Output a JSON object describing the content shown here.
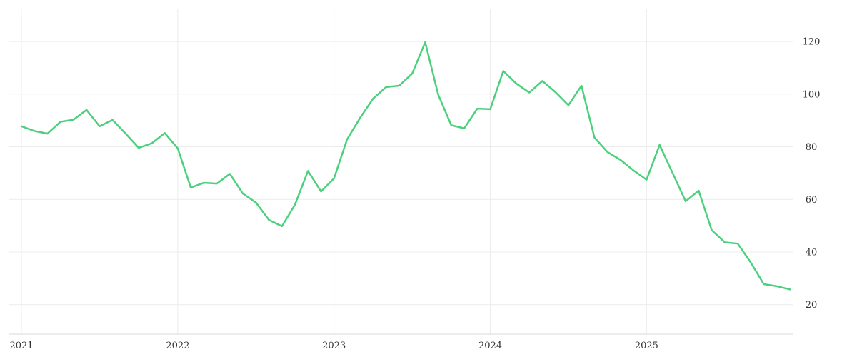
{
  "chart_data": {
    "type": "line",
    "title": "",
    "xlabel": "",
    "ylabel": "",
    "x_ticks": [
      "2021",
      "2022",
      "2023",
      "2024",
      "2025"
    ],
    "y_ticks": [
      20,
      40,
      60,
      80,
      100,
      120
    ],
    "ylim": [
      8.8,
      132.5
    ],
    "xlim": [
      "2021-01-01",
      "2025-12-01"
    ],
    "grid": true,
    "y_axis_side": "right",
    "colors": {
      "line": "#4cd07d",
      "grid": "#ececec",
      "text": "#333333"
    },
    "series": [
      {
        "values": [
          {
            "x": "2021-01",
            "y": 87.8
          },
          {
            "x": "2021-02",
            "y": 86.0
          },
          {
            "x": "2021-03",
            "y": 85.0
          },
          {
            "x": "2021-04",
            "y": 89.5
          },
          {
            "x": "2021-05",
            "y": 90.3
          },
          {
            "x": "2021-06",
            "y": 94.0
          },
          {
            "x": "2021-07",
            "y": 87.8
          },
          {
            "x": "2021-08",
            "y": 90.2
          },
          {
            "x": "2021-09",
            "y": 85.0
          },
          {
            "x": "2021-10",
            "y": 79.6
          },
          {
            "x": "2021-11",
            "y": 81.3
          },
          {
            "x": "2021-12",
            "y": 85.2
          },
          {
            "x": "2022-01",
            "y": 79.4
          },
          {
            "x": "2022-02",
            "y": 64.5
          },
          {
            "x": "2022-03",
            "y": 66.3
          },
          {
            "x": "2022-04",
            "y": 66.0
          },
          {
            "x": "2022-05",
            "y": 69.7
          },
          {
            "x": "2022-06",
            "y": 62.2
          },
          {
            "x": "2022-07",
            "y": 58.8
          },
          {
            "x": "2022-08",
            "y": 52.2
          },
          {
            "x": "2022-09",
            "y": 49.8
          },
          {
            "x": "2022-10",
            "y": 58.0
          },
          {
            "x": "2022-11",
            "y": 70.8
          },
          {
            "x": "2022-12",
            "y": 63.0
          },
          {
            "x": "2023-01",
            "y": 68.0
          },
          {
            "x": "2023-02",
            "y": 82.8
          },
          {
            "x": "2023-03",
            "y": 91.0
          },
          {
            "x": "2023-04",
            "y": 98.3
          },
          {
            "x": "2023-05",
            "y": 102.7
          },
          {
            "x": "2023-06",
            "y": 103.2
          },
          {
            "x": "2023-07",
            "y": 107.8
          },
          {
            "x": "2023-08",
            "y": 119.7
          },
          {
            "x": "2023-09",
            "y": 99.8
          },
          {
            "x": "2023-10",
            "y": 88.2
          },
          {
            "x": "2023-11",
            "y": 87.0
          },
          {
            "x": "2023-12",
            "y": 94.5
          },
          {
            "x": "2024-01",
            "y": 94.3
          },
          {
            "x": "2024-02",
            "y": 108.8
          },
          {
            "x": "2024-03",
            "y": 104.0
          },
          {
            "x": "2024-04",
            "y": 100.6
          },
          {
            "x": "2024-05",
            "y": 105.0
          },
          {
            "x": "2024-06",
            "y": 100.8
          },
          {
            "x": "2024-07",
            "y": 95.8
          },
          {
            "x": "2024-08",
            "y": 103.2
          },
          {
            "x": "2024-09",
            "y": 83.5
          },
          {
            "x": "2024-10",
            "y": 78.0
          },
          {
            "x": "2024-11",
            "y": 75.0
          },
          {
            "x": "2024-12",
            "y": 71.0
          },
          {
            "x": "2025-01",
            "y": 67.5
          },
          {
            "x": "2025-02",
            "y": 80.7
          },
          {
            "x": "2025-03",
            "y": 70.0
          },
          {
            "x": "2025-04",
            "y": 59.3
          },
          {
            "x": "2025-05",
            "y": 63.3
          },
          {
            "x": "2025-06",
            "y": 48.3
          },
          {
            "x": "2025-07",
            "y": 43.7
          },
          {
            "x": "2025-08",
            "y": 43.2
          },
          {
            "x": "2025-09",
            "y": 36.0
          },
          {
            "x": "2025-10",
            "y": 27.8
          },
          {
            "x": "2025-11",
            "y": 27.0
          },
          {
            "x": "2025-12",
            "y": 25.8
          }
        ]
      }
    ]
  }
}
